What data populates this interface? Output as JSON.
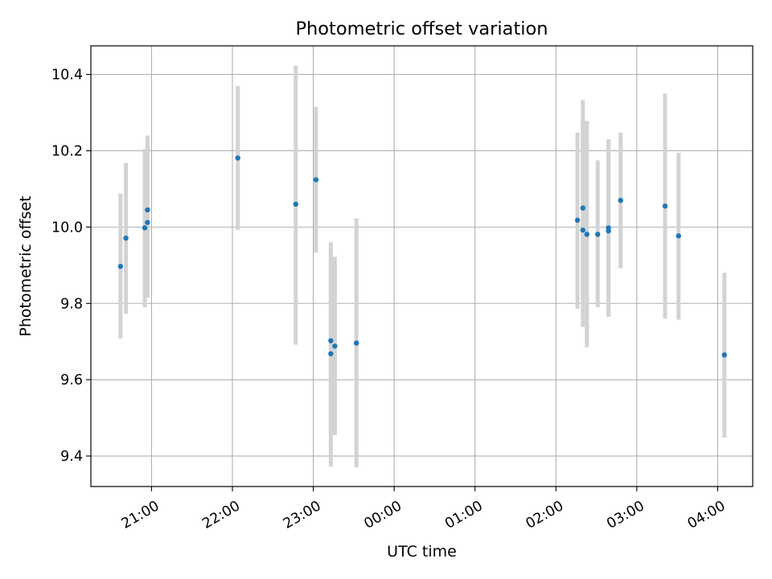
{
  "chart_data": {
    "type": "scatter",
    "title": "Photometric offset variation",
    "xlabel": "UTC time",
    "ylabel": "Photometric offset",
    "x_axis_type": "time",
    "xlim": [
      "20:15",
      "04:26"
    ],
    "ylim": [
      9.32,
      10.475
    ],
    "xticks": [
      {
        "time": "21:00",
        "label": "21:00"
      },
      {
        "time": "22:00",
        "label": "22:00"
      },
      {
        "time": "23:00",
        "label": "23:00"
      },
      {
        "time": "00:00",
        "label": "00:00"
      },
      {
        "time": "01:00",
        "label": "01:00"
      },
      {
        "time": "02:00",
        "label": "02:00"
      },
      {
        "time": "03:00",
        "label": "03:00"
      },
      {
        "time": "04:00",
        "label": "04:00"
      }
    ],
    "yticks": [
      9.4,
      9.6,
      9.8,
      10.0,
      10.2,
      10.4
    ],
    "ytick_labels": [
      "9.4",
      "9.6",
      "9.8",
      "10.0",
      "10.2",
      "10.4"
    ],
    "grid": true,
    "point_color": "#1f77b4",
    "errorbar_color": "#d3d3d3",
    "points": [
      {
        "time": "20:37",
        "y": 9.897,
        "ylo": 9.708,
        "yhi": 10.088
      },
      {
        "time": "20:41",
        "y": 9.971,
        "ylo": 9.773,
        "yhi": 10.168
      },
      {
        "time": "20:55",
        "y": 9.998,
        "ylo": 9.79,
        "yhi": 10.205
      },
      {
        "time": "20:57",
        "y": 10.045,
        "ylo": 9.84,
        "yhi": 10.24
      },
      {
        "time": "20:57",
        "y": 10.012,
        "ylo": 9.815,
        "yhi": 10.21
      },
      {
        "time": "22:04",
        "y": 10.181,
        "ylo": 9.992,
        "yhi": 10.37
      },
      {
        "time": "22:47",
        "y": 10.06,
        "ylo": 9.692,
        "yhi": 10.423
      },
      {
        "time": "23:02",
        "y": 10.124,
        "ylo": 9.933,
        "yhi": 10.315
      },
      {
        "time": "23:13",
        "y": 9.702,
        "ylo": 9.458,
        "yhi": 9.96
      },
      {
        "time": "23:13",
        "y": 9.668,
        "ylo": 9.372,
        "yhi": 9.945
      },
      {
        "time": "23:16",
        "y": 9.688,
        "ylo": 9.455,
        "yhi": 9.922
      },
      {
        "time": "23:32",
        "y": 9.696,
        "ylo": 9.37,
        "yhi": 10.023
      },
      {
        "time": "02:16",
        "y": 10.018,
        "ylo": 9.786,
        "yhi": 10.248
      },
      {
        "time": "02:20",
        "y": 9.992,
        "ylo": 9.738,
        "yhi": 10.333
      },
      {
        "time": "02:20",
        "y": 10.05,
        "ylo": 9.82,
        "yhi": 10.28
      },
      {
        "time": "02:23",
        "y": 9.981,
        "ylo": 9.685,
        "yhi": 10.278
      },
      {
        "time": "02:31",
        "y": 9.981,
        "ylo": 9.79,
        "yhi": 10.175
      },
      {
        "time": "02:39",
        "y": 9.998,
        "ylo": 9.765,
        "yhi": 10.23
      },
      {
        "time": "02:39",
        "y": 9.99,
        "ylo": 9.765,
        "yhi": 10.225
      },
      {
        "time": "02:48",
        "y": 10.07,
        "ylo": 9.892,
        "yhi": 10.248
      },
      {
        "time": "03:21",
        "y": 10.055,
        "ylo": 9.76,
        "yhi": 10.35
      },
      {
        "time": "03:31",
        "y": 9.977,
        "ylo": 9.757,
        "yhi": 10.195
      },
      {
        "time": "04:05",
        "y": 9.665,
        "ylo": 9.448,
        "yhi": 9.88
      }
    ]
  }
}
